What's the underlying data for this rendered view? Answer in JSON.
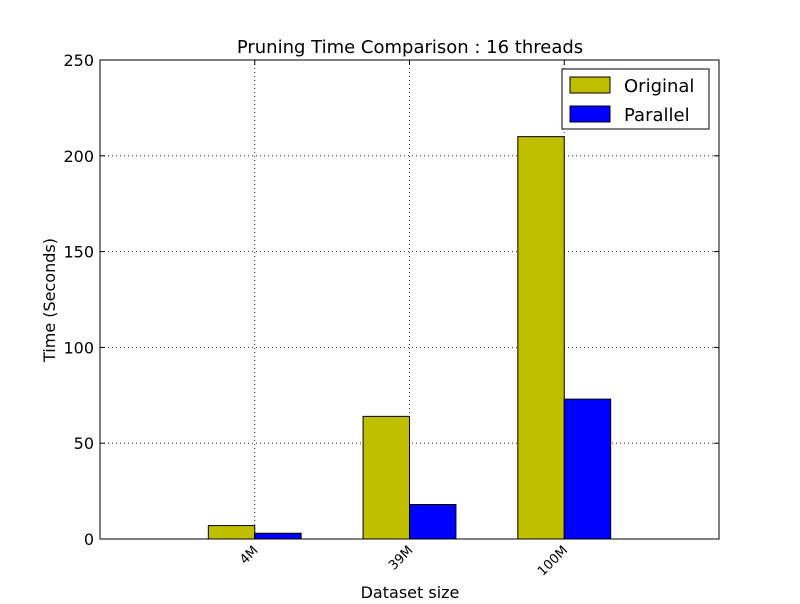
{
  "chart_data": {
    "type": "bar",
    "title": "Pruning Time Comparison : 16 threads",
    "xlabel": "Dataset size",
    "ylabel": "Time (Seconds)",
    "categories": [
      "4M",
      "39M",
      "100M"
    ],
    "series": [
      {
        "name": "Original",
        "values": [
          7,
          64,
          210
        ],
        "color": "#bfbf00"
      },
      {
        "name": "Parallel",
        "values": [
          3,
          18,
          73
        ],
        "color": "#0000ff"
      }
    ],
    "ylim": [
      0,
      250
    ],
    "yticks": [
      0,
      50,
      100,
      150,
      200,
      250
    ],
    "xlim": [
      0,
      4
    ],
    "grid": true,
    "grid_style": "dotted",
    "legend": "top-right",
    "xtick_rotation": -45
  }
}
